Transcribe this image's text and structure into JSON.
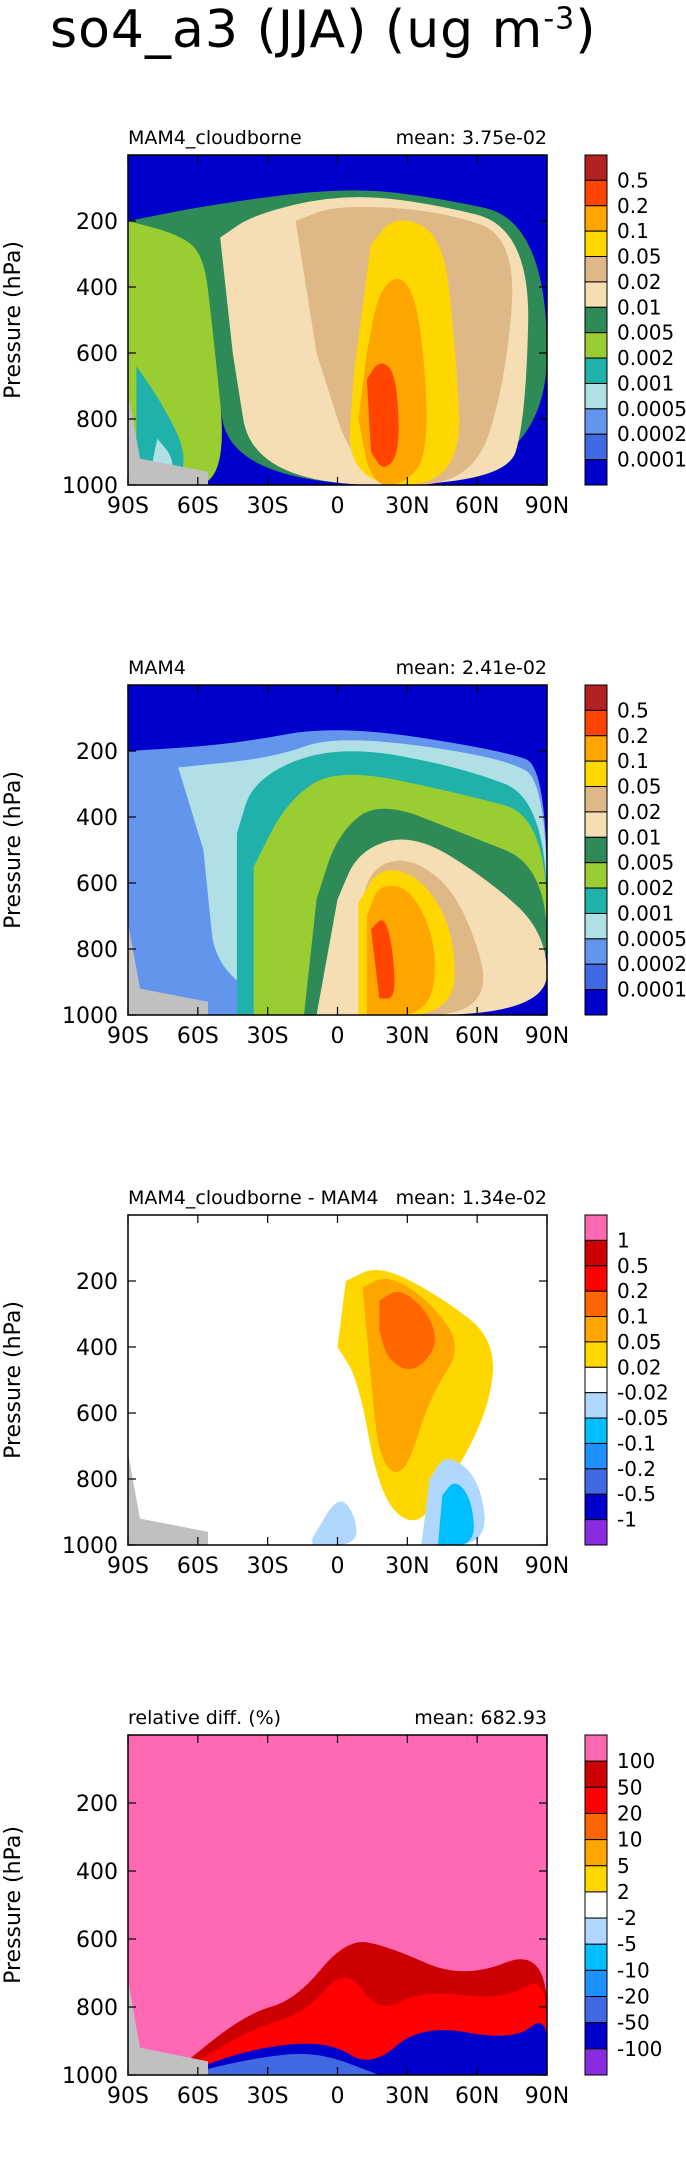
{
  "figure": {
    "title_main": "so4_a3 (JJA) (ug m",
    "title_exp": "-3",
    "title_close": ")"
  },
  "chart_data": [
    {
      "type": "heatmap",
      "title": "MAM4_cloudborne",
      "mean_label": "mean: 3.75e-02",
      "ylabel": "Pressure (hPa)",
      "xticks": [
        "90S",
        "60S",
        "30S",
        "0",
        "30N",
        "60N",
        "90N"
      ],
      "xtick_values": [
        -90,
        -60,
        -30,
        0,
        30,
        60,
        90
      ],
      "yticks": [
        "200",
        "400",
        "600",
        "800",
        "1000"
      ],
      "ytick_values": [
        200,
        400,
        600,
        800,
        1000
      ],
      "xlim": [
        -90,
        90
      ],
      "ylim": [
        1000,
        0
      ],
      "colorbar": {
        "labels": [
          "0.5",
          "0.2",
          "0.1",
          "0.05",
          "0.02",
          "0.01",
          "0.005",
          "0.002",
          "0.001",
          "0.0005",
          "0.0002",
          "0.0001"
        ],
        "colors": [
          "#b22222",
          "#ff4500",
          "#ffa500",
          "#ffd700",
          "#deb887",
          "#f5deb3",
          "#2e8b57",
          "#9acd32",
          "#20b2aa",
          "#b0e0e6",
          "#6495ed",
          "#4169e1",
          "#0000cd"
        ]
      }
    },
    {
      "type": "heatmap",
      "title": "MAM4",
      "mean_label": "mean: 2.41e-02",
      "ylabel": "Pressure (hPa)",
      "xticks": [
        "90S",
        "60S",
        "30S",
        "0",
        "30N",
        "60N",
        "90N"
      ],
      "xtick_values": [
        -90,
        -60,
        -30,
        0,
        30,
        60,
        90
      ],
      "yticks": [
        "200",
        "400",
        "600",
        "800",
        "1000"
      ],
      "ytick_values": [
        200,
        400,
        600,
        800,
        1000
      ],
      "xlim": [
        -90,
        90
      ],
      "ylim": [
        1000,
        0
      ],
      "colorbar": {
        "labels": [
          "0.5",
          "0.2",
          "0.1",
          "0.05",
          "0.02",
          "0.01",
          "0.005",
          "0.002",
          "0.001",
          "0.0005",
          "0.0002",
          "0.0001"
        ],
        "colors": [
          "#b22222",
          "#ff4500",
          "#ffa500",
          "#ffd700",
          "#deb887",
          "#f5deb3",
          "#2e8b57",
          "#9acd32",
          "#20b2aa",
          "#b0e0e6",
          "#6495ed",
          "#4169e1",
          "#0000cd"
        ]
      }
    },
    {
      "type": "heatmap",
      "title": "MAM4_cloudborne - MAM4",
      "mean_label": "mean: 1.34e-02",
      "ylabel": "Pressure (hPa)",
      "xticks": [
        "90S",
        "60S",
        "30S",
        "0",
        "30N",
        "60N",
        "90N"
      ],
      "xtick_values": [
        -90,
        -60,
        -30,
        0,
        30,
        60,
        90
      ],
      "yticks": [
        "200",
        "400",
        "600",
        "800",
        "1000"
      ],
      "ytick_values": [
        200,
        400,
        600,
        800,
        1000
      ],
      "xlim": [
        -90,
        90
      ],
      "ylim": [
        1000,
        0
      ],
      "colorbar": {
        "labels": [
          "1",
          "0.5",
          "0.2",
          "0.1",
          "0.05",
          "0.02",
          "-0.02",
          "-0.05",
          "-0.1",
          "-0.2",
          "-0.5",
          "-1"
        ],
        "colors": [
          "#ff69b4",
          "#cc0000",
          "#ff0000",
          "#ff6600",
          "#ffa500",
          "#ffd700",
          "#ffffff",
          "#b0d8ff",
          "#00bfff",
          "#1e90ff",
          "#4169e1",
          "#0000cd",
          "#8a2be2"
        ]
      }
    },
    {
      "type": "heatmap",
      "title": "relative diff. (%)",
      "mean_label": "mean: 682.93",
      "ylabel": "Pressure (hPa)",
      "xticks": [
        "90S",
        "60S",
        "30S",
        "0",
        "30N",
        "60N",
        "90N"
      ],
      "xtick_values": [
        -90,
        -60,
        -30,
        0,
        30,
        60,
        90
      ],
      "yticks": [
        "200",
        "400",
        "600",
        "800",
        "1000"
      ],
      "ytick_values": [
        200,
        400,
        600,
        800,
        1000
      ],
      "xlim": [
        -90,
        90
      ],
      "ylim": [
        1000,
        0
      ],
      "colorbar": {
        "labels": [
          "100",
          "50",
          "20",
          "10",
          "5",
          "2",
          "-2",
          "-5",
          "-10",
          "-20",
          "-50",
          "-100"
        ],
        "colors": [
          "#ff69b4",
          "#cc0000",
          "#ff0000",
          "#ff6600",
          "#ffa500",
          "#ffd700",
          "#ffffff",
          "#b0d8ff",
          "#00bfff",
          "#1e90ff",
          "#4169e1",
          "#0000cd",
          "#8a2be2"
        ]
      }
    }
  ]
}
